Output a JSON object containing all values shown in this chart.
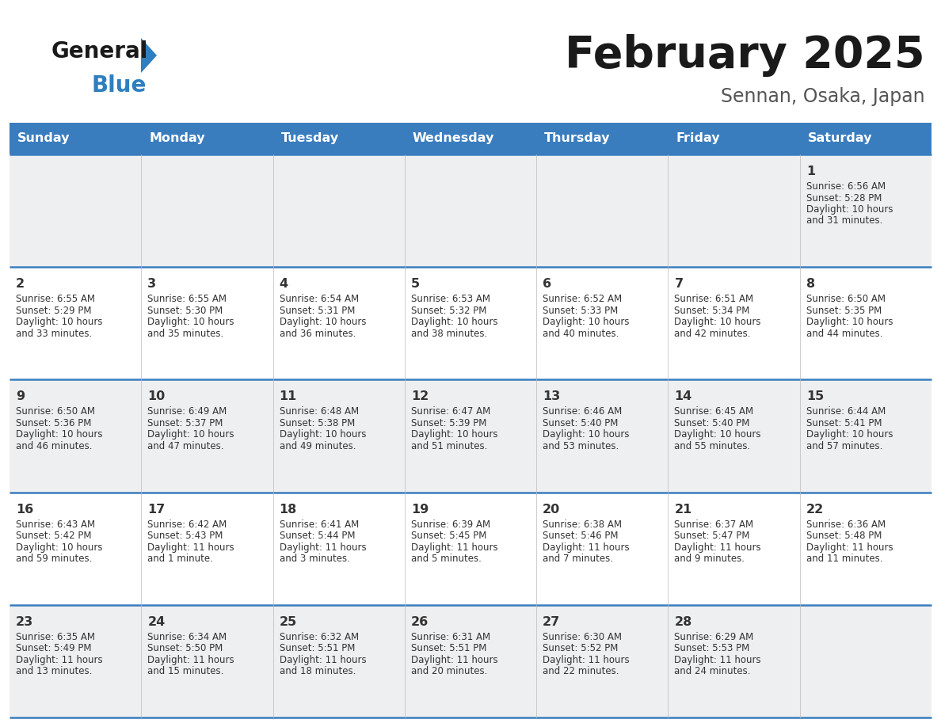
{
  "title": "February 2025",
  "subtitle": "Sennan, Osaka, Japan",
  "days_of_week": [
    "Sunday",
    "Monday",
    "Tuesday",
    "Wednesday",
    "Thursday",
    "Friday",
    "Saturday"
  ],
  "header_bg": "#3a7dbf",
  "header_text": "#ffffff",
  "row_bg_light": "#eeeff1",
  "row_bg_white": "#ffffff",
  "cell_text": "#333333",
  "title_color": "#1a1a1a",
  "subtitle_color": "#555555",
  "divider_color": "#3a7dbf",
  "logo_general_color": "#1a1a1a",
  "logo_blue_color": "#2e7fbf",
  "calendar_data": [
    {
      "day": 1,
      "col": 6,
      "row": 0,
      "sunrise": "6:56 AM",
      "sunset": "5:28 PM",
      "daylight": "10 hours and 31 minutes."
    },
    {
      "day": 2,
      "col": 0,
      "row": 1,
      "sunrise": "6:55 AM",
      "sunset": "5:29 PM",
      "daylight": "10 hours and 33 minutes."
    },
    {
      "day": 3,
      "col": 1,
      "row": 1,
      "sunrise": "6:55 AM",
      "sunset": "5:30 PM",
      "daylight": "10 hours and 35 minutes."
    },
    {
      "day": 4,
      "col": 2,
      "row": 1,
      "sunrise": "6:54 AM",
      "sunset": "5:31 PM",
      "daylight": "10 hours and 36 minutes."
    },
    {
      "day": 5,
      "col": 3,
      "row": 1,
      "sunrise": "6:53 AM",
      "sunset": "5:32 PM",
      "daylight": "10 hours and 38 minutes."
    },
    {
      "day": 6,
      "col": 4,
      "row": 1,
      "sunrise": "6:52 AM",
      "sunset": "5:33 PM",
      "daylight": "10 hours and 40 minutes."
    },
    {
      "day": 7,
      "col": 5,
      "row": 1,
      "sunrise": "6:51 AM",
      "sunset": "5:34 PM",
      "daylight": "10 hours and 42 minutes."
    },
    {
      "day": 8,
      "col": 6,
      "row": 1,
      "sunrise": "6:50 AM",
      "sunset": "5:35 PM",
      "daylight": "10 hours and 44 minutes."
    },
    {
      "day": 9,
      "col": 0,
      "row": 2,
      "sunrise": "6:50 AM",
      "sunset": "5:36 PM",
      "daylight": "10 hours and 46 minutes."
    },
    {
      "day": 10,
      "col": 1,
      "row": 2,
      "sunrise": "6:49 AM",
      "sunset": "5:37 PM",
      "daylight": "10 hours and 47 minutes."
    },
    {
      "day": 11,
      "col": 2,
      "row": 2,
      "sunrise": "6:48 AM",
      "sunset": "5:38 PM",
      "daylight": "10 hours and 49 minutes."
    },
    {
      "day": 12,
      "col": 3,
      "row": 2,
      "sunrise": "6:47 AM",
      "sunset": "5:39 PM",
      "daylight": "10 hours and 51 minutes."
    },
    {
      "day": 13,
      "col": 4,
      "row": 2,
      "sunrise": "6:46 AM",
      "sunset": "5:40 PM",
      "daylight": "10 hours and 53 minutes."
    },
    {
      "day": 14,
      "col": 5,
      "row": 2,
      "sunrise": "6:45 AM",
      "sunset": "5:40 PM",
      "daylight": "10 hours and 55 minutes."
    },
    {
      "day": 15,
      "col": 6,
      "row": 2,
      "sunrise": "6:44 AM",
      "sunset": "5:41 PM",
      "daylight": "10 hours and 57 minutes."
    },
    {
      "day": 16,
      "col": 0,
      "row": 3,
      "sunrise": "6:43 AM",
      "sunset": "5:42 PM",
      "daylight": "10 hours and 59 minutes."
    },
    {
      "day": 17,
      "col": 1,
      "row": 3,
      "sunrise": "6:42 AM",
      "sunset": "5:43 PM",
      "daylight": "11 hours and 1 minute."
    },
    {
      "day": 18,
      "col": 2,
      "row": 3,
      "sunrise": "6:41 AM",
      "sunset": "5:44 PM",
      "daylight": "11 hours and 3 minutes."
    },
    {
      "day": 19,
      "col": 3,
      "row": 3,
      "sunrise": "6:39 AM",
      "sunset": "5:45 PM",
      "daylight": "11 hours and 5 minutes."
    },
    {
      "day": 20,
      "col": 4,
      "row": 3,
      "sunrise": "6:38 AM",
      "sunset": "5:46 PM",
      "daylight": "11 hours and 7 minutes."
    },
    {
      "day": 21,
      "col": 5,
      "row": 3,
      "sunrise": "6:37 AM",
      "sunset": "5:47 PM",
      "daylight": "11 hours and 9 minutes."
    },
    {
      "day": 22,
      "col": 6,
      "row": 3,
      "sunrise": "6:36 AM",
      "sunset": "5:48 PM",
      "daylight": "11 hours and 11 minutes."
    },
    {
      "day": 23,
      "col": 0,
      "row": 4,
      "sunrise": "6:35 AM",
      "sunset": "5:49 PM",
      "daylight": "11 hours and 13 minutes."
    },
    {
      "day": 24,
      "col": 1,
      "row": 4,
      "sunrise": "6:34 AM",
      "sunset": "5:50 PM",
      "daylight": "11 hours and 15 minutes."
    },
    {
      "day": 25,
      "col": 2,
      "row": 4,
      "sunrise": "6:32 AM",
      "sunset": "5:51 PM",
      "daylight": "11 hours and 18 minutes."
    },
    {
      "day": 26,
      "col": 3,
      "row": 4,
      "sunrise": "6:31 AM",
      "sunset": "5:51 PM",
      "daylight": "11 hours and 20 minutes."
    },
    {
      "day": 27,
      "col": 4,
      "row": 4,
      "sunrise": "6:30 AM",
      "sunset": "5:52 PM",
      "daylight": "11 hours and 22 minutes."
    },
    {
      "day": 28,
      "col": 5,
      "row": 4,
      "sunrise": "6:29 AM",
      "sunset": "5:53 PM",
      "daylight": "11 hours and 24 minutes."
    }
  ],
  "num_rows": 5,
  "figsize": [
    11.88,
    9.18
  ],
  "dpi": 100
}
